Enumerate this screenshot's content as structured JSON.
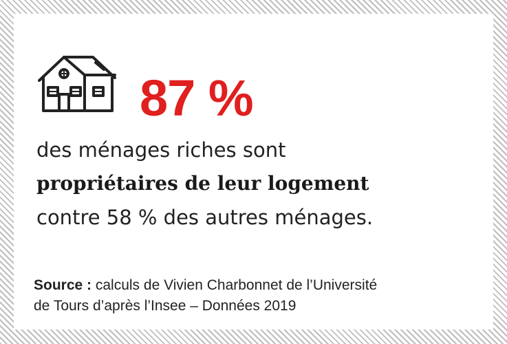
{
  "headline": {
    "value": "87 %",
    "color": "#e01f1f"
  },
  "body": {
    "line1": "des ménages riches sont",
    "line2": "propriétaires de leur logement",
    "line3": "contre 58 % des autres ménages."
  },
  "source": {
    "label": "Source :",
    "line1": " calculs de Vivien Charbonnet de l’Université",
    "line2": "de Tours d’après l’Insee – Données 2019"
  },
  "icons": {
    "house": "house-icon"
  }
}
